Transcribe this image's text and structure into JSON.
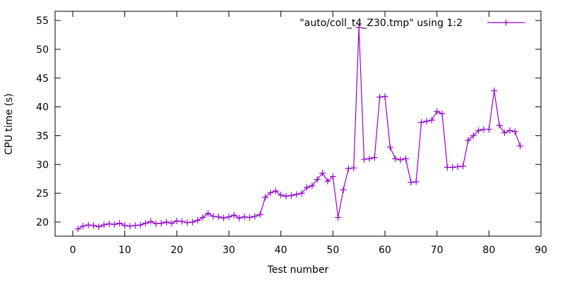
{
  "chart_data": {
    "type": "line",
    "title": "",
    "xlabel": "Test number",
    "ylabel": "CPU time (s)",
    "legend_label": "\"auto/coll_t4_Z30.tmp\" using 1:2",
    "legend_position": "top-right-inside",
    "line_color": "#9400d3",
    "marker": "plus",
    "marker_size": 9,
    "background_color": "#ffffff",
    "border_color": "#000000",
    "grid": false,
    "xlim": [
      -3.4,
      90
    ],
    "ylim": [
      17.55,
      56.6
    ],
    "xticks": [
      0,
      10,
      20,
      30,
      40,
      50,
      60,
      70,
      80,
      90
    ],
    "yticks": [
      20,
      25,
      30,
      35,
      40,
      45,
      50,
      55
    ],
    "x": [
      1,
      2,
      3,
      4,
      5,
      6,
      7,
      8,
      9,
      10,
      11,
      12,
      13,
      14,
      15,
      16,
      17,
      18,
      19,
      20,
      21,
      22,
      23,
      24,
      25,
      26,
      27,
      28,
      29,
      30,
      31,
      32,
      33,
      34,
      35,
      36,
      37,
      38,
      39,
      40,
      41,
      42,
      43,
      44,
      45,
      46,
      47,
      48,
      49,
      50,
      51,
      52,
      53,
      54,
      55,
      56,
      57,
      58,
      59,
      60,
      61,
      62,
      63,
      64,
      65,
      66,
      67,
      68,
      69,
      70,
      71,
      72,
      73,
      74,
      75,
      76,
      77,
      78,
      79,
      80,
      81,
      82,
      83,
      84,
      85,
      86
    ],
    "y": [
      18.8,
      19.3,
      19.5,
      19.4,
      19.2,
      19.5,
      19.7,
      19.6,
      19.8,
      19.4,
      19.3,
      19.4,
      19.5,
      19.8,
      20.1,
      19.7,
      19.8,
      20.0,
      19.8,
      20.2,
      20.1,
      19.9,
      20.0,
      20.3,
      20.8,
      21.5,
      21.0,
      20.9,
      20.7,
      20.9,
      21.2,
      20.7,
      20.9,
      20.8,
      21.0,
      21.3,
      24.3,
      25.1,
      25.4,
      24.7,
      24.5,
      24.6,
      24.8,
      25.0,
      26.0,
      26.3,
      27.4,
      28.5,
      27.1,
      27.9,
      20.8,
      25.6,
      29.3,
      29.4,
      53.8,
      30.9,
      31.0,
      31.2,
      41.7,
      41.8,
      33.0,
      31.0,
      30.8,
      31.0,
      26.9,
      27.0,
      37.3,
      37.5,
      37.7,
      39.2,
      38.8,
      29.5,
      29.5,
      29.6,
      29.7,
      34.2,
      35.0,
      35.9,
      36.1,
      36.1,
      42.8,
      36.8,
      35.5,
      35.9,
      35.7,
      33.2
    ]
  }
}
